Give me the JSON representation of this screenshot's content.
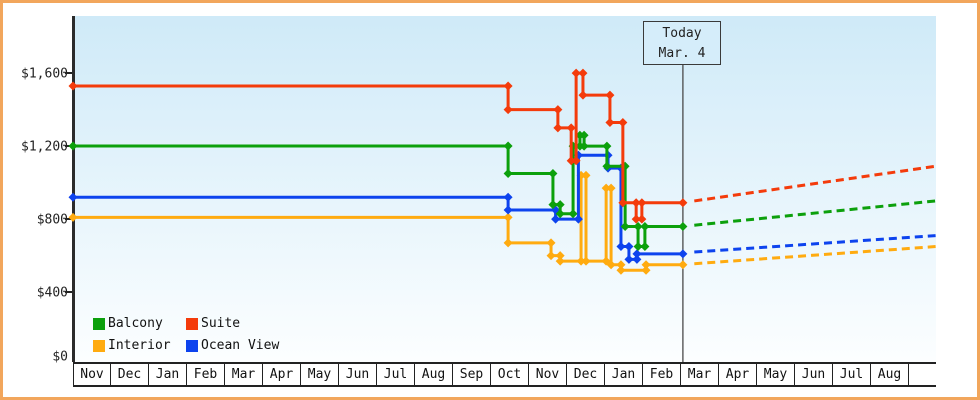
{
  "frame": {
    "border_color": "#f2a65c",
    "background": "#ffffff"
  },
  "chart_data": {
    "type": "line",
    "style": "step-price-history",
    "title": "",
    "y_axis": {
      "tick_labels": [
        "$0",
        "$400",
        "$800",
        "$1,200",
        "$1,600"
      ],
      "tick_values": [
        0,
        400,
        800,
        1200,
        1600
      ],
      "min": 0,
      "max": 1900,
      "grid": false
    },
    "x_axis": {
      "unit": "month",
      "months": [
        "Nov",
        "Dec",
        "Jan",
        "Feb",
        "Mar",
        "Apr",
        "May",
        "Jun",
        "Jul",
        "Aug",
        "Sep",
        "Oct",
        "Nov",
        "Dec",
        "Jan",
        "Feb",
        "Mar",
        "Apr",
        "May",
        "Jun",
        "Jul",
        "Aug"
      ],
      "right_edge_month": 22.7
    },
    "today": {
      "line1": "Today",
      "line2": "Mar. 4",
      "month_position": 16.05
    },
    "plot_background": {
      "top": "#cfeaf8",
      "bottom": "#fcfeff"
    },
    "axis_color": "#222222",
    "legend": [
      {
        "label": "Balcony",
        "color": "#0ca00c"
      },
      {
        "label": "Suite",
        "color": "#f43b0b"
      },
      {
        "label": "Interior",
        "color": "#ffab10"
      },
      {
        "label": "Ocean View",
        "color": "#0d43ee"
      }
    ],
    "series": [
      {
        "name": "Interior",
        "color": "#ffab10",
        "points": [
          [
            0,
            809
          ],
          [
            11.45,
            669
          ],
          [
            12.58,
            599
          ],
          [
            12.82,
            569
          ],
          [
            13.37,
            1039
          ],
          [
            13.5,
            569
          ],
          [
            14.03,
            969
          ],
          [
            14.16,
            549
          ],
          [
            14.42,
            519
          ],
          [
            15.08,
            549
          ],
          [
            16.05,
            549
          ]
        ],
        "projection": {
          "from": [
            16.35,
            555
          ],
          "to": [
            22.7,
            649
          ]
        }
      },
      {
        "name": "Ocean View",
        "color": "#0d43ee",
        "points": [
          [
            0,
            919
          ],
          [
            11.45,
            849
          ],
          [
            12.7,
            799
          ],
          [
            13.3,
            1149
          ],
          [
            14.08,
            1079
          ],
          [
            14.42,
            649
          ],
          [
            14.63,
            579
          ],
          [
            14.84,
            609
          ],
          [
            16.05,
            609
          ]
        ],
        "projection": {
          "from": [
            16.35,
            619
          ],
          "to": [
            22.7,
            709
          ]
        }
      },
      {
        "name": "Balcony",
        "color": "#0ca00c",
        "points": [
          [
            0,
            1200
          ],
          [
            11.45,
            1049
          ],
          [
            12.63,
            879
          ],
          [
            12.82,
            829
          ],
          [
            13.16,
            1199
          ],
          [
            13.34,
            1259
          ],
          [
            13.45,
            1199
          ],
          [
            14.05,
            1089
          ],
          [
            14.53,
            759
          ],
          [
            14.87,
            649
          ],
          [
            15.05,
            759
          ],
          [
            16.05,
            759
          ]
        ],
        "projection": {
          "from": [
            16.35,
            766
          ],
          "to": [
            22.7,
            899
          ]
        }
      },
      {
        "name": "Suite",
        "color": "#f43b0b",
        "points": [
          [
            0,
            1529
          ],
          [
            11.45,
            1399
          ],
          [
            12.76,
            1299
          ],
          [
            13.11,
            1119
          ],
          [
            13.24,
            1599
          ],
          [
            13.42,
            1479
          ],
          [
            14.13,
            1329
          ],
          [
            14.47,
            889
          ],
          [
            14.82,
            799
          ],
          [
            14.97,
            889
          ],
          [
            16.05,
            889
          ]
        ],
        "projection": {
          "from": [
            16.35,
            899
          ],
          "to": [
            22.7,
            1089
          ]
        }
      }
    ]
  }
}
